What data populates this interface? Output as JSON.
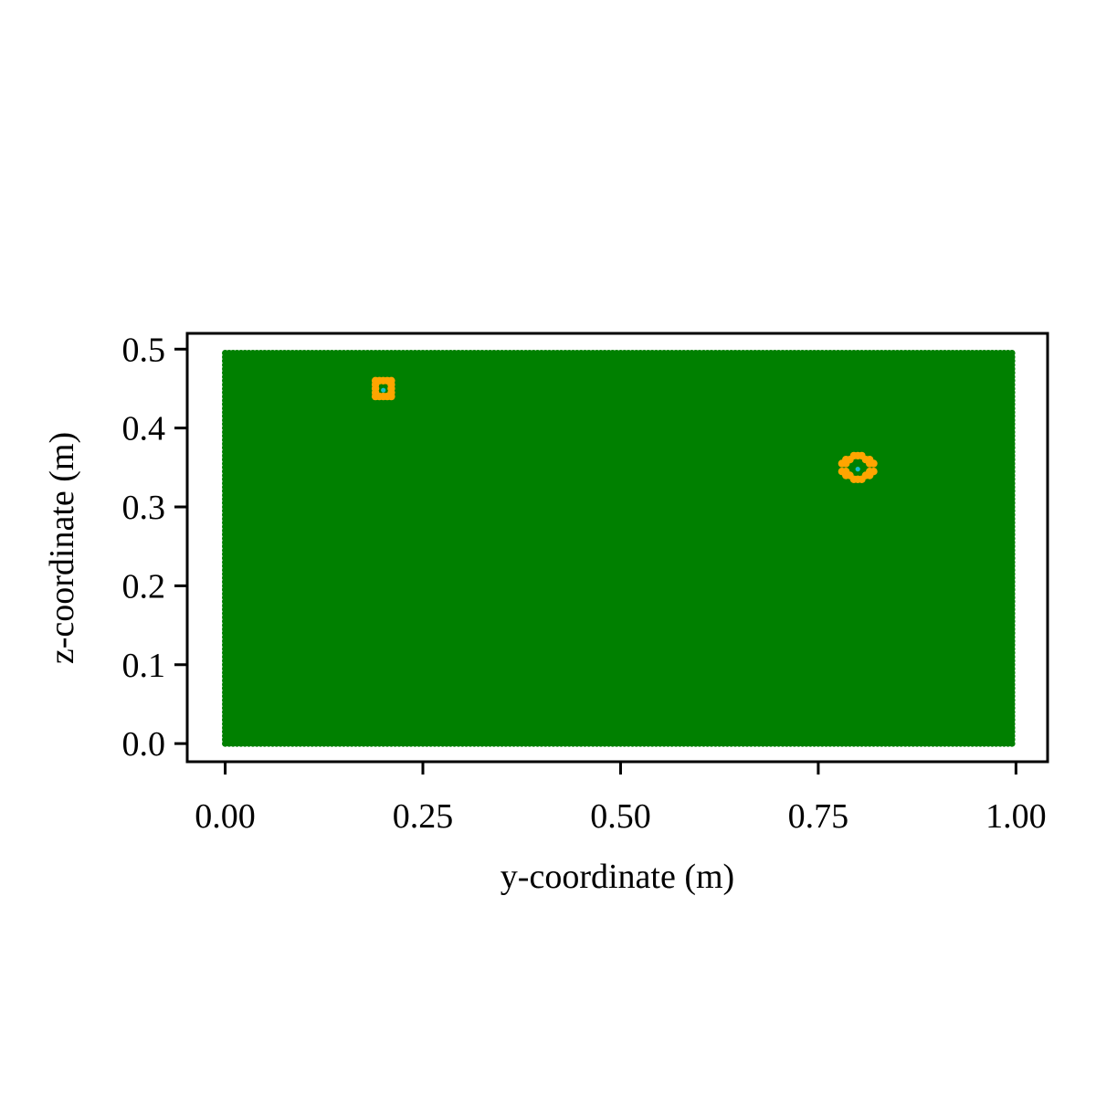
{
  "chart_data": {
    "type": "scatter",
    "title": "",
    "xlabel": "y-coordinate (m)",
    "ylabel": "z-coordinate (m)",
    "xlim": [
      -0.048,
      1.04
    ],
    "ylim": [
      -0.023,
      0.52
    ],
    "xticks": [
      0.0,
      0.25,
      0.5,
      0.75,
      1.0
    ],
    "xtick_labels": [
      "0.00",
      "0.25",
      "0.50",
      "0.75",
      "1.00"
    ],
    "yticks": [
      0.0,
      0.1,
      0.2,
      0.3,
      0.4,
      0.5
    ],
    "ytick_labels": [
      "0.0",
      "0.1",
      "0.2",
      "0.3",
      "0.4",
      "0.5"
    ],
    "grid": false,
    "legend": "none",
    "series": [
      {
        "color": "#008000",
        "description": "uniform grid of points",
        "x_range": [
          0.0,
          0.995
        ],
        "y_range": [
          0.0,
          0.495
        ],
        "spacing": 0.005
      },
      {
        "color": "#FFA500",
        "description": "points around (0.2, 0.45)",
        "x": [
          0.19,
          0.195,
          0.2,
          0.205,
          0.21,
          0.19,
          0.21,
          0.19,
          0.21,
          0.19,
          0.21,
          0.19,
          0.195,
          0.2,
          0.205,
          0.21
        ],
        "y": [
          0.46,
          0.46,
          0.46,
          0.46,
          0.46,
          0.455,
          0.455,
          0.45,
          0.45,
          0.445,
          0.445,
          0.44,
          0.44,
          0.44,
          0.44,
          0.44
        ]
      },
      {
        "color": "#FFA500",
        "description": "points around (0.8, 0.35)",
        "x": [
          0.795,
          0.8,
          0.805,
          0.785,
          0.79,
          0.81,
          0.815,
          0.78,
          0.785,
          0.815,
          0.82,
          0.78,
          0.785,
          0.815,
          0.82,
          0.785,
          0.79,
          0.81,
          0.815,
          0.795,
          0.8,
          0.805
        ],
        "y": [
          0.365,
          0.365,
          0.365,
          0.36,
          0.36,
          0.36,
          0.36,
          0.355,
          0.355,
          0.355,
          0.355,
          0.345,
          0.345,
          0.345,
          0.345,
          0.34,
          0.34,
          0.34,
          0.34,
          0.335,
          0.335,
          0.335
        ]
      },
      {
        "color": "#17BECF",
        "description": "source points",
        "x": [
          0.2,
          0.8
        ],
        "y": [
          0.448,
          0.348
        ]
      }
    ]
  }
}
